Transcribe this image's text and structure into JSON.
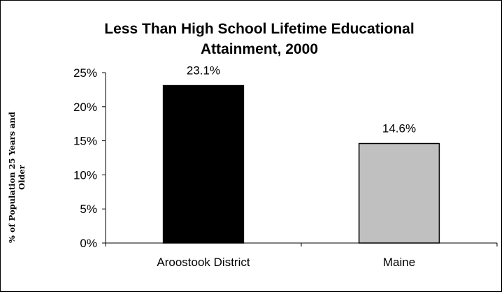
{
  "chart_data": {
    "type": "bar",
    "title_lines": [
      "Less Than High School Lifetime Educational",
      "Attainment, 2000"
    ],
    "ylabel_lines": [
      "% of Population 25 Years and",
      "Older"
    ],
    "xlabel": "",
    "categories": [
      "Aroostook District",
      "Maine"
    ],
    "values": [
      23.1,
      14.6
    ],
    "value_labels": [
      "23.1%",
      "14.6%"
    ],
    "bar_colors": [
      "#000000",
      "#c0c0c0"
    ],
    "ylim": [
      0,
      25
    ],
    "yticks": [
      0,
      5,
      10,
      15,
      20,
      25
    ],
    "ytick_labels": [
      "0%",
      "5%",
      "10%",
      "15%",
      "20%",
      "25%"
    ],
    "grid": false,
    "legend": "none"
  }
}
